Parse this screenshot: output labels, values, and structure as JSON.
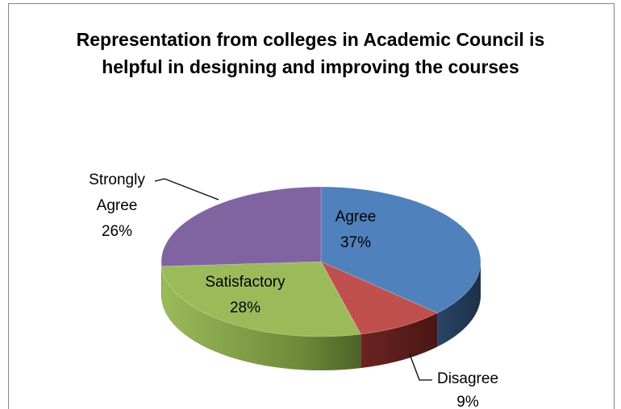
{
  "chart_data": {
    "type": "pie",
    "title": "Representation from colleges in Academic Council is helpful in designing and improving the courses",
    "slices": [
      {
        "name": "Agree",
        "value": 37,
        "label": "37%",
        "color": "#4F81BD"
      },
      {
        "name": "Disagree",
        "value": 9,
        "label": "9%",
        "color": "#C0504D"
      },
      {
        "name": "Satisfactory",
        "value": 28,
        "label": "28%",
        "color": "#9BBB59"
      },
      {
        "name": "Strongly Agree",
        "value": 26,
        "label": "26%",
        "color": "#8064A2"
      }
    ],
    "labels": {
      "agree_name": "Agree",
      "agree_pct": "37%",
      "disagree_name": "Disagree",
      "disagree_pct": "9%",
      "satisfactory_name": "Satisfactory",
      "satisfactory_pct": "28%",
      "strongly_line1": "Strongly",
      "strongly_line2": "Agree",
      "strongly_pct": "26%"
    },
    "style": "3d-pie",
    "legend": "none"
  }
}
